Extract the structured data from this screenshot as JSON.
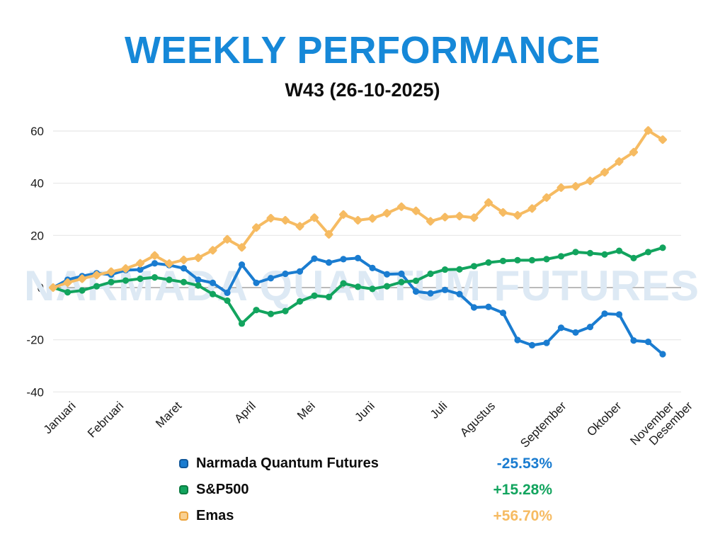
{
  "header": {
    "title": "WEEKLY PERFORMANCE",
    "subtitle": "W43 (26-10-2025)"
  },
  "watermark": "NARMADA QUANTUM FUTURES",
  "colors": {
    "title": "#1688d8",
    "watermark": "#dde9f4",
    "gridline": "#e7e7e7",
    "zero_line": "#909090",
    "axis_text": "#1a1a1a"
  },
  "chart_data": {
    "type": "line",
    "title": "WEEKLY PERFORMANCE",
    "subtitle": "W43 (26-10-2025)",
    "x_unit": "week",
    "weeks": 43,
    "ylim": [
      -40,
      60
    ],
    "yticks": [
      60,
      40,
      20,
      0,
      -20,
      -40
    ],
    "grid": true,
    "legend_position": "bottom",
    "month_labels": [
      "Januari",
      "Februari",
      "Maret",
      "April",
      "Mei",
      "Juni",
      "Juli",
      "Agustus",
      "September",
      "Oktober",
      "November",
      "Desember"
    ],
    "month_week_positions": [
      1.6,
      4.9,
      8.9,
      14.0,
      18.1,
      22.2,
      27.2,
      30.5,
      35.4,
      39.2,
      42.8,
      44.1
    ],
    "series": [
      {
        "name": "Narmada Quantum Futures",
        "color": "#1a7cd0",
        "swatch_fill": "#1a7cd0",
        "swatch_border": "#11589b",
        "marker": "circle",
        "final_label": "-25.53%",
        "values": [
          0,
          3.0,
          4.4,
          5.5,
          5.0,
          6.7,
          6.9,
          9.3,
          8.6,
          7.4,
          3.0,
          1.8,
          -2.0,
          8.8,
          1.8,
          3.6,
          5.3,
          6.2,
          11.1,
          9.6,
          10.9,
          11.3,
          7.5,
          5.1,
          5.3,
          -1.5,
          -2.2,
          -0.9,
          -2.5,
          -7.6,
          -7.4,
          -9.7,
          -20.1,
          -22.1,
          -21.2,
          -15.4,
          -17.2,
          -15.1,
          -10.0,
          -10.3,
          -20.3,
          -20.8,
          -25.53
        ]
      },
      {
        "name": "S&P500",
        "color": "#12a45e",
        "swatch_fill": "#12a45e",
        "swatch_border": "#0b7c41",
        "marker": "circle",
        "final_label": "+15.28%",
        "values": [
          0,
          -1.8,
          -1.1,
          0.5,
          2.1,
          2.7,
          3.4,
          3.9,
          3.0,
          2.1,
          0.8,
          -2.5,
          -5.0,
          -13.8,
          -8.6,
          -10.1,
          -9.0,
          -5.3,
          -3.1,
          -3.6,
          1.6,
          0.3,
          -0.5,
          0.5,
          2.1,
          2.6,
          5.3,
          6.9,
          7.0,
          8.2,
          9.6,
          10.2,
          10.5,
          10.5,
          10.9,
          12.0,
          13.6,
          13.2,
          12.7,
          14.1,
          11.3,
          13.6,
          15.28
        ]
      },
      {
        "name": "Emas",
        "color": "#f6bb62",
        "swatch_fill": "#f9d091",
        "swatch_border": "#eca33b",
        "marker": "diamond",
        "final_label": "+56.70%",
        "values": [
          0,
          1.9,
          3.4,
          4.8,
          6.1,
          7.3,
          9.3,
          12.3,
          9.2,
          10.6,
          11.4,
          14.3,
          18.5,
          15.4,
          23.0,
          26.6,
          25.8,
          23.5,
          26.8,
          20.4,
          28.0,
          25.8,
          26.5,
          28.5,
          31.0,
          29.4,
          25.4,
          27.0,
          27.4,
          26.8,
          32.6,
          28.8,
          27.7,
          30.3,
          34.5,
          38.3,
          38.8,
          40.9,
          44.2,
          48.3,
          51.9,
          60.2,
          56.7
        ]
      }
    ]
  }
}
